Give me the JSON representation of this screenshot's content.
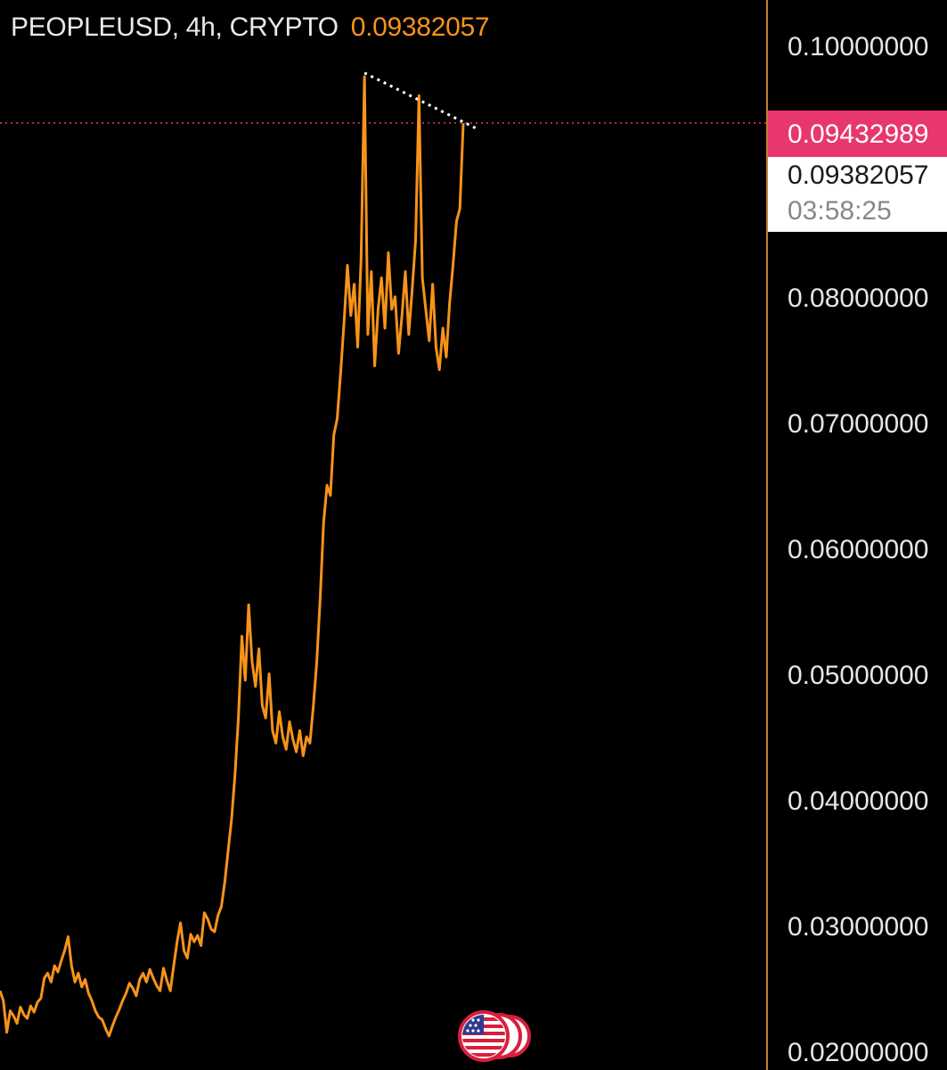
{
  "header": {
    "symbol": "PEOPLEUSD, 4h, CRYPTO",
    "last_price": "0.09382057"
  },
  "price_axis": {
    "high_badge": "0.09432989",
    "last_badge": "0.09382057",
    "countdown": "03:58:25"
  },
  "colors": {
    "background": "#000000",
    "line": "#f7931a",
    "axis_border": "#c97a2f",
    "high_badge_bg": "#e8366f",
    "last_badge_bg": "#ffffff",
    "price_line": "#e8366f",
    "trendline": "#ffffff"
  },
  "flag_icon": "us-flag-icon",
  "chart_data": {
    "type": "line",
    "title": "PEOPLEUSD, 4h, CRYPTO",
    "xlabel": "",
    "ylabel": "",
    "ylim": [
      0.0185,
      0.1036
    ],
    "grid": false,
    "yticks": [
      0.1,
      0.08,
      0.07,
      0.06,
      0.05,
      0.04,
      0.03,
      0.02
    ],
    "ytick_labels": [
      "0.10000000",
      "0.08000000",
      "0.07000000",
      "0.06000000",
      "0.05000000",
      "0.04000000",
      "0.03000000",
      "0.02000000"
    ],
    "current_price": 0.09382057,
    "series": [
      {
        "values": [
          0.0248,
          0.024,
          0.0215,
          0.0232,
          0.0228,
          0.0222,
          0.0235,
          0.0229,
          0.0226,
          0.0236,
          0.0231,
          0.0239,
          0.0242,
          0.0258,
          0.0262,
          0.0255,
          0.0268,
          0.0263,
          0.0272,
          0.028,
          0.0291,
          0.0268,
          0.0255,
          0.0262,
          0.0251,
          0.0257,
          0.0246,
          0.024,
          0.0232,
          0.0227,
          0.0225,
          0.0218,
          0.0212,
          0.022,
          0.0227,
          0.0233,
          0.024,
          0.0246,
          0.0254,
          0.025,
          0.0244,
          0.0257,
          0.0262,
          0.0255,
          0.0265,
          0.0258,
          0.0252,
          0.0248,
          0.0266,
          0.0256,
          0.0248,
          0.0268,
          0.0287,
          0.0302,
          0.028,
          0.0274,
          0.0293,
          0.0287,
          0.0292,
          0.0284,
          0.031,
          0.0305,
          0.0297,
          0.0295,
          0.0308,
          0.0315,
          0.0335,
          0.036,
          0.0385,
          0.042,
          0.0465,
          0.053,
          0.0495,
          0.0555,
          0.051,
          0.049,
          0.052,
          0.0475,
          0.0465,
          0.05,
          0.0455,
          0.0445,
          0.047,
          0.045,
          0.044,
          0.0462,
          0.0448,
          0.0438,
          0.0455,
          0.0435,
          0.045,
          0.0445,
          0.0475,
          0.051,
          0.056,
          0.062,
          0.065,
          0.0642,
          0.069,
          0.0703,
          0.074,
          0.078,
          0.0825,
          0.0785,
          0.081,
          0.076,
          0.083,
          0.0975,
          0.077,
          0.082,
          0.0745,
          0.079,
          0.0815,
          0.0775,
          0.0835,
          0.079,
          0.08,
          0.0755,
          0.0785,
          0.082,
          0.077,
          0.0805,
          0.0845,
          0.096,
          0.0815,
          0.079,
          0.0765,
          0.081,
          0.076,
          0.0742,
          0.0775,
          0.0752,
          0.0795,
          0.0825,
          0.086,
          0.087,
          0.0938
        ]
      }
    ],
    "annotations": [
      {
        "type": "trendline",
        "from": [
          107,
          0.0978
        ],
        "to": [
          137,
          0.0937
        ]
      },
      {
        "type": "horizontal-line",
        "value": 0.09382057
      }
    ]
  }
}
